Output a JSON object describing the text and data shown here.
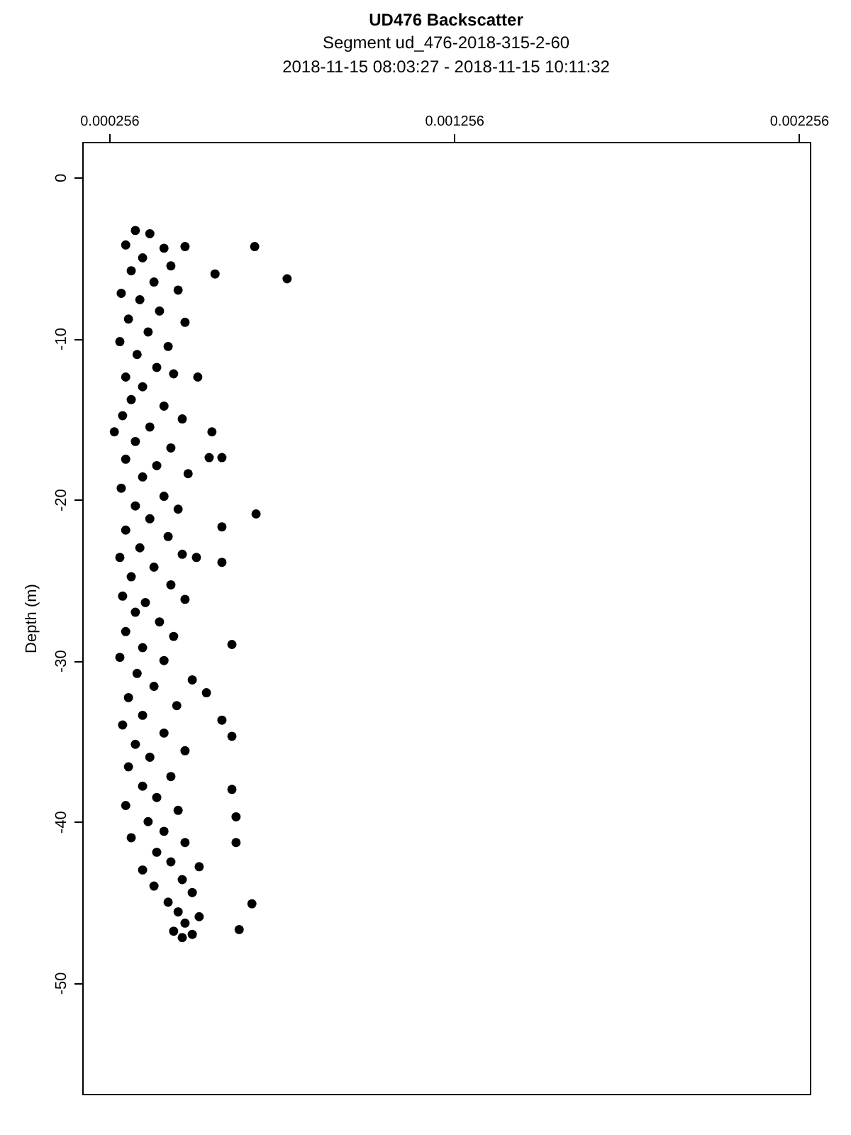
{
  "chart_data": {
    "type": "scatter",
    "title": "UD476 Backscatter",
    "subtitle": "Segment ud_476-2018-315-2-60\n2018-11-15 08:03:27 - 2018-11-15 10:11:32",
    "ylabel": "Depth (m)",
    "xlim": [
      0.000178,
      0.002288
    ],
    "xticks": [
      0.000256,
      0.001256,
      0.002256
    ],
    "ylim": [
      -56.9,
      2.2
    ],
    "yticks": [
      0,
      -10,
      -20,
      -30,
      -40,
      -50
    ],
    "grid": false,
    "marker": "circle",
    "series": [
      {
        "color": "#000000",
        "x": [
          0.000332,
          0.000374,
          0.000304,
          0.000415,
          0.000353,
          0.00032,
          0.000435,
          0.000386,
          0.000291,
          0.000345,
          0.000456,
          0.000402,
          0.000312,
          0.000476,
          0.000369,
          0.000287,
          0.000427,
          0.000337,
          0.000394,
          0.000304,
          0.000443,
          0.000353,
          0.00032,
          0.000415,
          0.000295,
          0.000468,
          0.000374,
          0.000271,
          0.000332,
          0.000435,
          0.000304,
          0.000394,
          0.000353,
          0.000485,
          0.000291,
          0.000415,
          0.000332,
          0.000456,
          0.000374,
          0.000304,
          0.000427,
          0.000345,
          0.000287,
          0.000468,
          0.000386,
          0.00032,
          0.000435,
          0.000295,
          0.000361,
          0.000476,
          0.000332,
          0.000402,
          0.000304,
          0.000443,
          0.000353,
          0.000287,
          0.000415,
          0.000337,
          0.000497,
          0.000386,
          0.000312,
          0.000452,
          0.000353,
          0.000295,
          0.000415,
          0.000332,
          0.000476,
          0.000374,
          0.000312,
          0.000435,
          0.000353,
          0.000394,
          0.000304,
          0.000456,
          0.000369,
          0.000415,
          0.00032,
          0.000476,
          0.000394,
          0.000435,
          0.000353,
          0.000517,
          0.000468,
          0.000386,
          0.000497,
          0.000427,
          0.000456,
          0.000517,
          0.000476,
          0.000443,
          0.000497,
          0.000468,
          0.000678,
          0.000772,
          0.000563,
          0.000476,
          0.000513,
          0.000554,
          0.000546,
          0.000583,
          0.000682,
          0.000583,
          0.000583,
          0.000509,
          0.000612,
          0.000538,
          0.000583,
          0.000612,
          0.000612,
          0.000624,
          0.000624,
          0.00067,
          0.000633
        ],
        "values": [
          -3.3,
          -3.5,
          -4.2,
          -4.4,
          -5.0,
          -5.8,
          -5.5,
          -6.5,
          -7.2,
          -7.6,
          -7.0,
          -8.3,
          -8.8,
          -9.0,
          -9.6,
          -10.2,
          -10.5,
          -11.0,
          -11.8,
          -12.4,
          -12.2,
          -13.0,
          -13.8,
          -14.2,
          -14.8,
          -15.0,
          -15.5,
          -15.8,
          -16.4,
          -16.8,
          -17.5,
          -17.9,
          -18.6,
          -18.4,
          -19.3,
          -19.8,
          -20.4,
          -20.6,
          -21.2,
          -21.9,
          -22.3,
          -23.0,
          -23.6,
          -23.4,
          -24.2,
          -24.8,
          -25.3,
          -26.0,
          -26.4,
          -26.2,
          -27.0,
          -27.6,
          -28.2,
          -28.5,
          -29.2,
          -29.8,
          -30.0,
          -30.8,
          -31.2,
          -31.6,
          -32.3,
          -32.8,
          -33.4,
          -34.0,
          -34.5,
          -35.2,
          -35.6,
          -36.0,
          -36.6,
          -37.2,
          -37.8,
          -38.5,
          -39.0,
          -39.3,
          -40.0,
          -40.6,
          -41.0,
          -41.3,
          -41.9,
          -42.5,
          -43.0,
          -42.8,
          -43.6,
          -44.0,
          -44.4,
          -45.0,
          -45.6,
          -45.9,
          -46.3,
          -46.8,
          -47.0,
          -47.2,
          -4.3,
          -6.3,
          -6.0,
          -4.3,
          -12.4,
          -15.8,
          -17.4,
          -17.4,
          -20.9,
          -21.7,
          -23.9,
          -23.6,
          -29.0,
          -32.0,
          -33.7,
          -34.7,
          -38.0,
          -39.7,
          -41.3,
          -45.1,
          -46.7
        ]
      }
    ]
  }
}
